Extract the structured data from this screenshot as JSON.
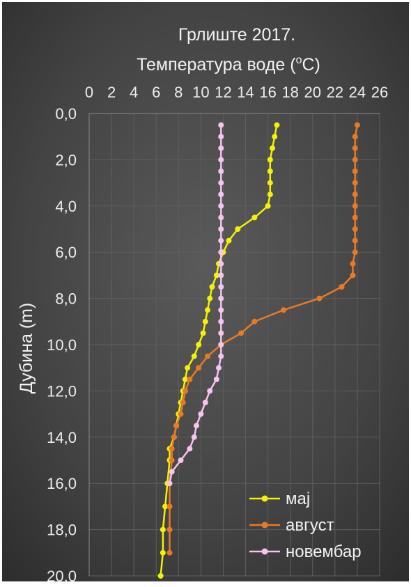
{
  "chart_data": {
    "type": "line",
    "title": "Грлиште 2017.",
    "xlabel_prefix": "Температура воде (",
    "xlabel_sup": "o",
    "xlabel_suffix": "C)",
    "ylabel": "Дубина (m)",
    "xlim": [
      0,
      26
    ],
    "ylim": [
      0,
      20
    ],
    "y_inverted": true,
    "x_axis_position": "top",
    "x_ticks": [
      "0",
      "2",
      "4",
      "6",
      "8",
      "10",
      "12",
      "14",
      "16",
      "18",
      "20",
      "22",
      "24",
      "26"
    ],
    "y_ticks": [
      "0,0",
      "2,0",
      "4,0",
      "6,0",
      "8,0",
      "10,0",
      "12,0",
      "14,0",
      "16,0",
      "18,0",
      "20,0"
    ],
    "grid": true,
    "legend_position": "bottom-right",
    "series": [
      {
        "name": "мај",
        "color": "#f2f205",
        "points": [
          [
            16.8,
            0.5
          ],
          [
            16.6,
            1.0
          ],
          [
            16.4,
            1.5
          ],
          [
            16.2,
            2.0
          ],
          [
            16.2,
            2.5
          ],
          [
            16.2,
            3.0
          ],
          [
            16.2,
            3.5
          ],
          [
            16.0,
            4.0
          ],
          [
            14.8,
            4.5
          ],
          [
            13.3,
            5.0
          ],
          [
            12.5,
            5.5
          ],
          [
            12.0,
            6.0
          ],
          [
            11.6,
            6.5
          ],
          [
            11.4,
            7.0
          ],
          [
            11.0,
            7.5
          ],
          [
            10.8,
            8.0
          ],
          [
            10.6,
            8.5
          ],
          [
            10.4,
            9.0
          ],
          [
            10.2,
            9.5
          ],
          [
            9.8,
            10.0
          ],
          [
            9.4,
            10.5
          ],
          [
            8.8,
            11.0
          ],
          [
            8.6,
            11.5
          ],
          [
            8.4,
            12.0
          ],
          [
            8.2,
            12.5
          ],
          [
            8.0,
            13.0
          ],
          [
            7.8,
            13.5
          ],
          [
            7.6,
            14.0
          ],
          [
            7.2,
            14.5
          ],
          [
            7.2,
            15.0
          ],
          [
            7.0,
            16.0
          ],
          [
            6.8,
            17.0
          ],
          [
            6.6,
            18.0
          ],
          [
            6.6,
            19.0
          ],
          [
            6.4,
            20.0
          ]
        ]
      },
      {
        "name": "август",
        "color": "#e97a25",
        "points": [
          [
            24.0,
            0.5
          ],
          [
            23.8,
            1.0
          ],
          [
            23.8,
            1.5
          ],
          [
            23.8,
            2.0
          ],
          [
            23.8,
            2.5
          ],
          [
            23.8,
            3.0
          ],
          [
            23.8,
            3.5
          ],
          [
            23.8,
            4.0
          ],
          [
            23.8,
            4.5
          ],
          [
            23.8,
            5.0
          ],
          [
            23.8,
            5.5
          ],
          [
            23.8,
            6.0
          ],
          [
            23.6,
            6.5
          ],
          [
            23.6,
            7.0
          ],
          [
            22.6,
            7.5
          ],
          [
            20.6,
            8.0
          ],
          [
            17.4,
            8.5
          ],
          [
            14.8,
            9.0
          ],
          [
            13.6,
            9.5
          ],
          [
            11.8,
            10.0
          ],
          [
            10.6,
            10.5
          ],
          [
            9.8,
            11.0
          ],
          [
            9.0,
            11.5
          ],
          [
            8.6,
            12.0
          ],
          [
            8.4,
            12.5
          ],
          [
            8.2,
            13.0
          ],
          [
            7.8,
            13.5
          ],
          [
            7.6,
            14.0
          ],
          [
            7.4,
            14.5
          ],
          [
            7.4,
            15.0
          ],
          [
            7.2,
            16.0
          ],
          [
            7.2,
            17.0
          ],
          [
            7.2,
            18.0
          ],
          [
            7.2,
            19.0
          ]
        ]
      },
      {
        "name": "новембар",
        "color": "#f4c5ee",
        "points": [
          [
            11.8,
            0.5
          ],
          [
            11.8,
            1.0
          ],
          [
            11.8,
            1.5
          ],
          [
            11.8,
            2.0
          ],
          [
            11.8,
            2.5
          ],
          [
            11.8,
            3.0
          ],
          [
            11.8,
            3.5
          ],
          [
            11.8,
            4.0
          ],
          [
            11.8,
            4.5
          ],
          [
            11.8,
            5.0
          ],
          [
            11.8,
            5.5
          ],
          [
            11.8,
            6.0
          ],
          [
            11.8,
            6.5
          ],
          [
            11.8,
            7.0
          ],
          [
            11.8,
            7.5
          ],
          [
            11.8,
            8.0
          ],
          [
            11.8,
            8.5
          ],
          [
            11.8,
            9.0
          ],
          [
            11.8,
            9.5
          ],
          [
            11.8,
            10.0
          ],
          [
            11.8,
            10.5
          ],
          [
            11.6,
            11.0
          ],
          [
            11.4,
            11.5
          ],
          [
            10.8,
            12.0
          ],
          [
            10.4,
            12.5
          ],
          [
            10.0,
            13.0
          ],
          [
            9.6,
            13.5
          ],
          [
            9.4,
            14.0
          ],
          [
            9.0,
            14.5
          ],
          [
            8.2,
            15.0
          ],
          [
            7.4,
            15.5
          ],
          [
            7.2,
            16.0
          ]
        ]
      }
    ]
  }
}
